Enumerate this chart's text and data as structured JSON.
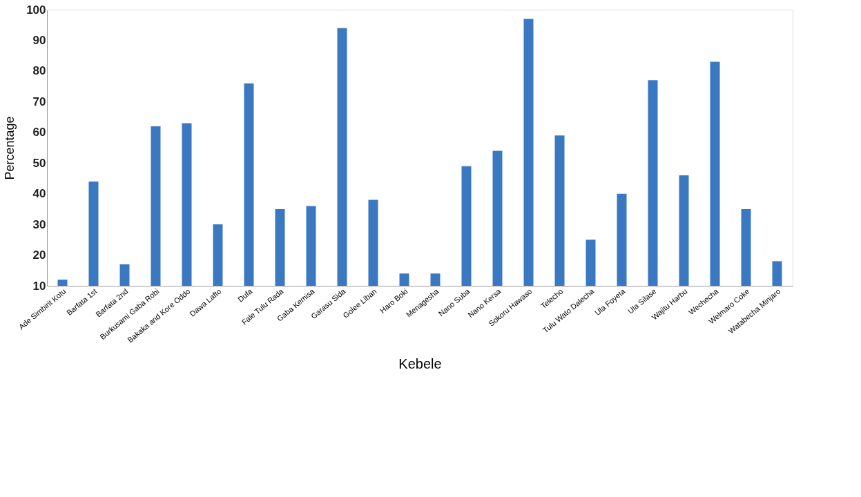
{
  "chart_data": {
    "type": "bar",
    "xlabel": "Kebele",
    "ylabel": "Percentage",
    "categories": [
      "Ade Simbirit Kotu",
      "Barfata 1st",
      "Barfata 2nd",
      "Burkusami Gaba Robi",
      "Bakaka and Kore Oddo",
      "Dawa Lafto",
      "Dufa",
      "Fale Tulu Rada",
      "Gaba Kemisa",
      "Garasu Sida",
      "Golee Liban",
      "Haro Boki",
      "Menagesha",
      "Nano Suba",
      "Nano Kersa",
      "Sokoru Hawaso",
      "Telecho",
      "Tulu Wato Dalecha",
      "Ula Foyeta",
      "Ula Silase",
      "Wajitu Harbu",
      "Wechecha",
      "Welmaro Coke",
      "Watabecha Minjaro"
    ],
    "values": [
      12,
      44,
      17,
      62,
      63,
      30,
      76,
      35,
      36,
      94,
      38,
      14,
      14,
      49,
      54,
      97,
      59,
      25,
      40,
      77,
      46,
      83,
      35,
      18
    ],
    "color": "#3a78c2",
    "ylim": [
      10,
      100
    ],
    "yticks": [
      10,
      20,
      30,
      40,
      50,
      60,
      70,
      80,
      90,
      100
    ],
    "grid": false
  }
}
